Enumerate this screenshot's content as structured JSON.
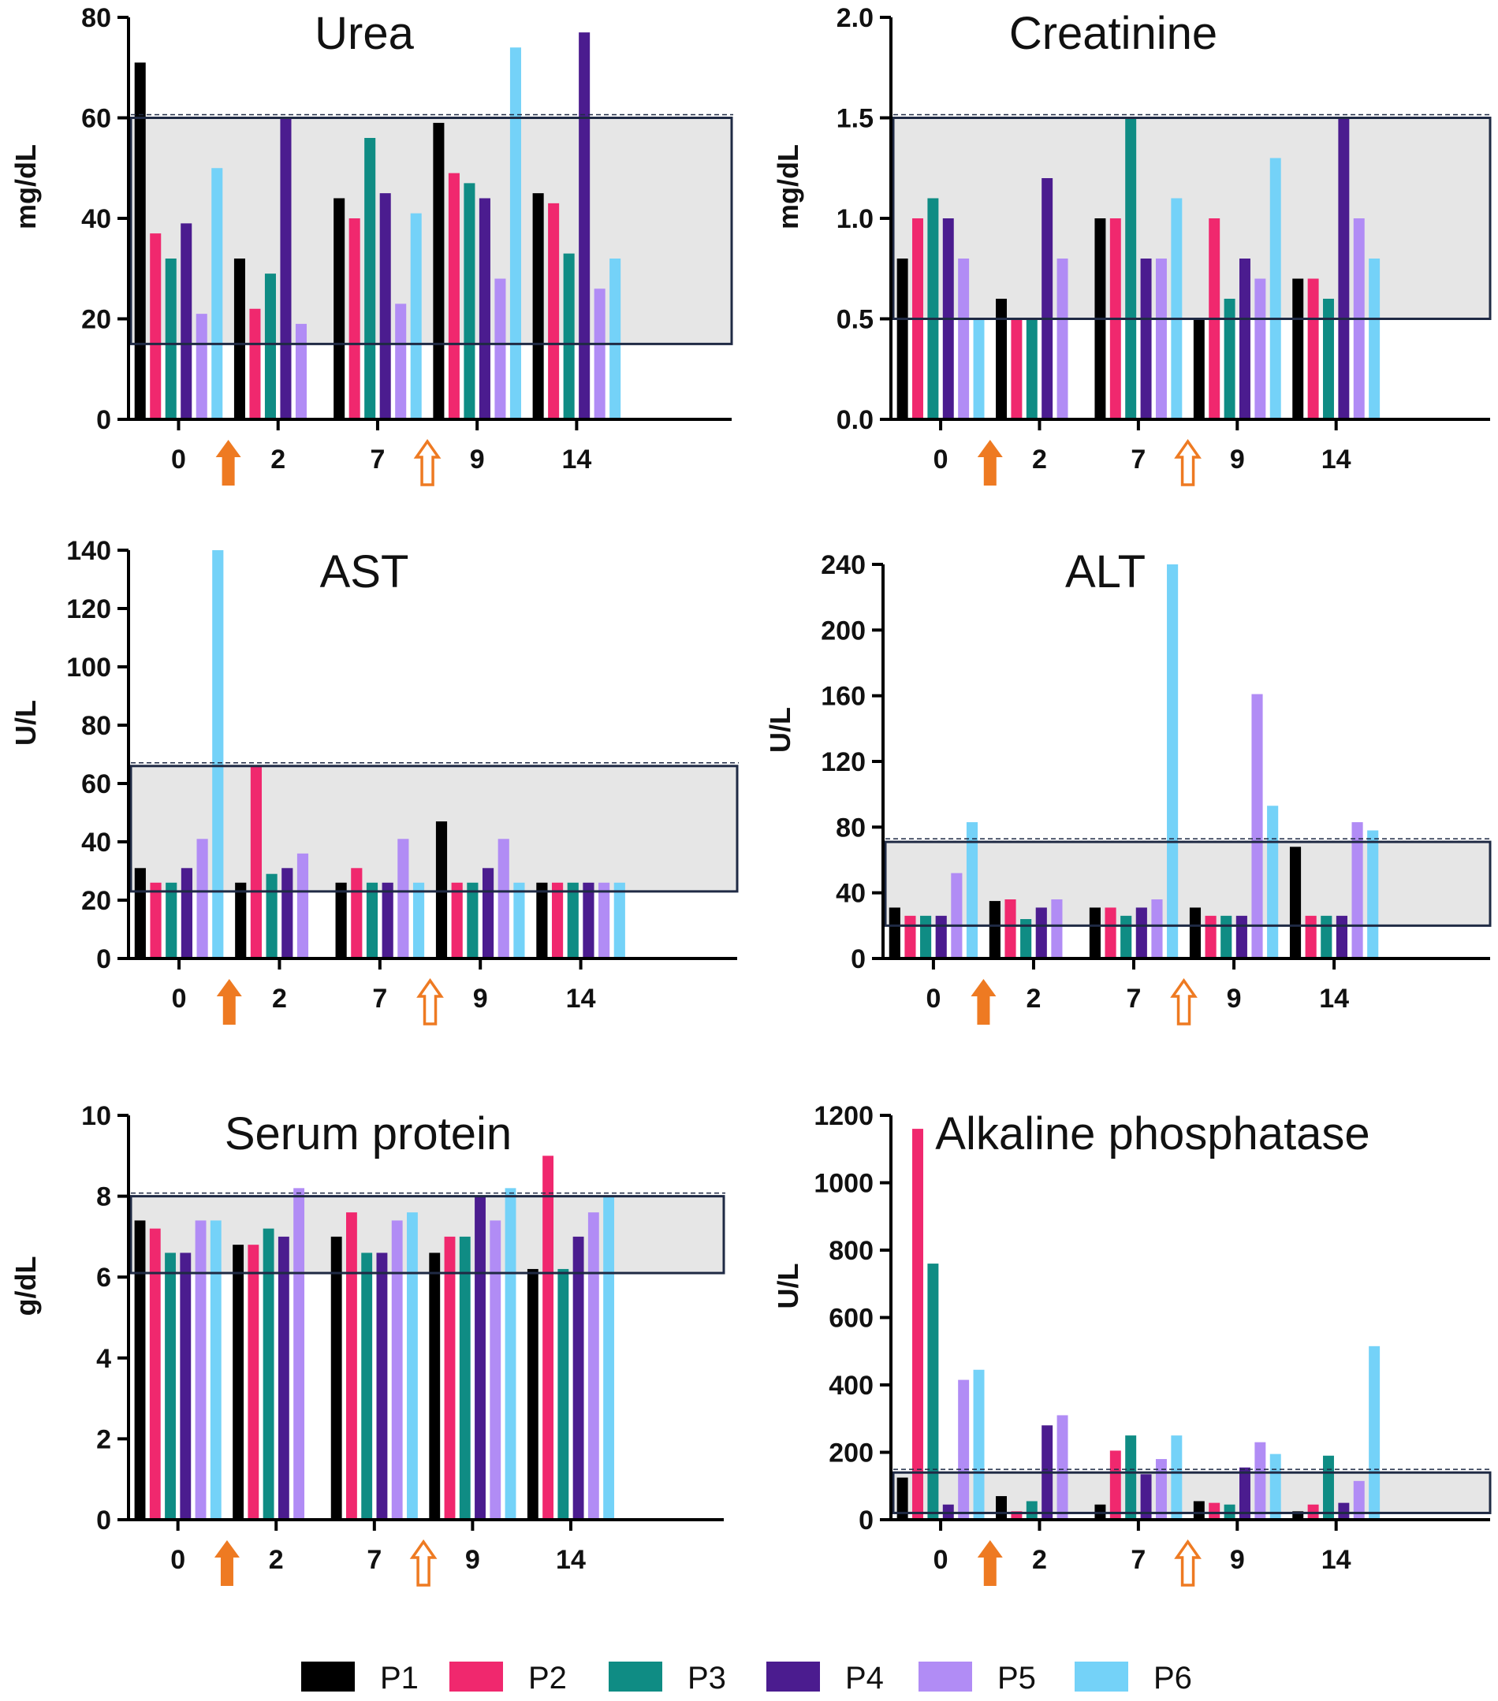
{
  "chart_data": [
    {
      "type": "bar",
      "title": "Urea",
      "ylabel": "mg/dL",
      "ylim": [
        0,
        80
      ],
      "yticks": [
        "0",
        "20",
        "40",
        "60",
        "80"
      ],
      "categories": [
        "0",
        "2",
        "7",
        "9",
        "14"
      ],
      "normal_range": [
        15,
        60
      ],
      "series": [
        {
          "name": "P1",
          "values": [
            71,
            32,
            44,
            59,
            45
          ]
        },
        {
          "name": "P2",
          "values": [
            37,
            22,
            40,
            49,
            43
          ]
        },
        {
          "name": "P3",
          "values": [
            32,
            29,
            56,
            47,
            33
          ]
        },
        {
          "name": "P4",
          "values": [
            39,
            60,
            45,
            44,
            77
          ]
        },
        {
          "name": "P5",
          "values": [
            21,
            19,
            23,
            28,
            26
          ]
        },
        {
          "name": "P6",
          "values": [
            50,
            null,
            41,
            74,
            32
          ]
        }
      ]
    },
    {
      "type": "bar",
      "title": "Creatinine",
      "ylabel": "mg/dL",
      "ylim": [
        0,
        2.0
      ],
      "yticks": [
        "0.0",
        "0.5",
        "1.0",
        "1.5",
        "2.0"
      ],
      "categories": [
        "0",
        "2",
        "7",
        "9",
        "14"
      ],
      "normal_range": [
        0.5,
        1.5
      ],
      "series": [
        {
          "name": "P1",
          "values": [
            0.8,
            0.6,
            1.0,
            0.5,
            0.7
          ]
        },
        {
          "name": "P2",
          "values": [
            1.0,
            0.5,
            1.0,
            1.0,
            0.7
          ]
        },
        {
          "name": "P3",
          "values": [
            1.1,
            0.5,
            1.5,
            0.6,
            0.6
          ]
        },
        {
          "name": "P4",
          "values": [
            1.0,
            1.2,
            0.8,
            0.8,
            1.5
          ]
        },
        {
          "name": "P5",
          "values": [
            0.8,
            0.8,
            0.8,
            0.7,
            1.0
          ]
        },
        {
          "name": "P6",
          "values": [
            0.5,
            null,
            1.1,
            1.3,
            0.8
          ]
        }
      ]
    },
    {
      "type": "bar",
      "title": "AST",
      "ylabel": "U/L",
      "ylim": [
        0,
        140
      ],
      "yticks": [
        "0",
        "20",
        "40",
        "60",
        "80",
        "100",
        "120",
        "140"
      ],
      "categories": [
        "0",
        "2",
        "7",
        "9",
        "14"
      ],
      "normal_range": [
        23,
        66
      ],
      "series": [
        {
          "name": "P1",
          "values": [
            31,
            26,
            26,
            47,
            26
          ]
        },
        {
          "name": "P2",
          "values": [
            26,
            66,
            31,
            26,
            26
          ]
        },
        {
          "name": "P3",
          "values": [
            26,
            29,
            26,
            26,
            26
          ]
        },
        {
          "name": "P4",
          "values": [
            31,
            31,
            26,
            31,
            26
          ]
        },
        {
          "name": "P5",
          "values": [
            41,
            36,
            41,
            41,
            26
          ]
        },
        {
          "name": "P6",
          "values": [
            140,
            null,
            26,
            26,
            26
          ]
        }
      ]
    },
    {
      "type": "bar",
      "title": "ALT",
      "ylabel": "U/L",
      "ylim": [
        0,
        240
      ],
      "yticks": [
        "0",
        "40",
        "80",
        "120",
        "160",
        "200",
        "240"
      ],
      "categories": [
        "0",
        "2",
        "7",
        "9",
        "14"
      ],
      "normal_range": [
        20,
        71
      ],
      "series": [
        {
          "name": "P1",
          "values": [
            31,
            35,
            31,
            31,
            68
          ]
        },
        {
          "name": "P2",
          "values": [
            26,
            36,
            31,
            26,
            26
          ]
        },
        {
          "name": "P3",
          "values": [
            26,
            24,
            26,
            26,
            26
          ]
        },
        {
          "name": "P4",
          "values": [
            26,
            31,
            31,
            26,
            26
          ]
        },
        {
          "name": "P5",
          "values": [
            52,
            36,
            36,
            161,
            83
          ]
        },
        {
          "name": "P6",
          "values": [
            83,
            null,
            240,
            93,
            78
          ]
        }
      ]
    },
    {
      "type": "bar",
      "title": "Serum protein",
      "ylabel": "g/dL",
      "ylim": [
        0,
        10
      ],
      "yticks": [
        "0",
        "2",
        "4",
        "6",
        "8",
        "10"
      ],
      "categories": [
        "0",
        "2",
        "7",
        "9",
        "14"
      ],
      "normal_range": [
        6.1,
        8.0
      ],
      "series": [
        {
          "name": "P1",
          "values": [
            7.4,
            6.8,
            7.0,
            6.6,
            6.2
          ]
        },
        {
          "name": "P2",
          "values": [
            7.2,
            6.8,
            7.6,
            7.0,
            9.0
          ]
        },
        {
          "name": "P3",
          "values": [
            6.6,
            7.2,
            6.6,
            7.0,
            6.2
          ]
        },
        {
          "name": "P4",
          "values": [
            6.6,
            7.0,
            6.6,
            8.0,
            7.0
          ]
        },
        {
          "name": "P5",
          "values": [
            7.4,
            8.2,
            7.4,
            7.4,
            7.6
          ]
        },
        {
          "name": "P6",
          "values": [
            7.4,
            null,
            7.6,
            8.2,
            8.0
          ]
        }
      ]
    },
    {
      "type": "bar",
      "title": "Alkaline phosphatase",
      "ylabel": "U/L",
      "ylim": [
        0,
        1200
      ],
      "yticks": [
        "0",
        "200",
        "400",
        "600",
        "800",
        "1000",
        "1200"
      ],
      "categories": [
        "0",
        "2",
        "7",
        "9",
        "14"
      ],
      "normal_range": [
        20,
        140
      ],
      "series": [
        {
          "name": "P1",
          "values": [
            125,
            70,
            45,
            55,
            25
          ]
        },
        {
          "name": "P2",
          "values": [
            1160,
            25,
            205,
            50,
            45
          ]
        },
        {
          "name": "P3",
          "values": [
            760,
            55,
            250,
            45,
            190
          ]
        },
        {
          "name": "P4",
          "values": [
            45,
            280,
            135,
            155,
            50
          ]
        },
        {
          "name": "P5",
          "values": [
            415,
            310,
            180,
            230,
            115
          ]
        },
        {
          "name": "P6",
          "values": [
            445,
            null,
            250,
            195,
            515
          ]
        }
      ]
    }
  ],
  "legend": [
    {
      "name": "P1",
      "color": "#000000"
    },
    {
      "name": "P2",
      "color": "#F0286E"
    },
    {
      "name": "P3",
      "color": "#0F8C84"
    },
    {
      "name": "P4",
      "color": "#4B1C8F"
    },
    {
      "name": "P5",
      "color": "#B18CF5"
    },
    {
      "name": "P6",
      "color": "#74D2F8"
    }
  ],
  "colors": {
    "arrow": "#EE7A22",
    "normal_box": "#E6E6E6",
    "normal_border": "#1F2A44"
  }
}
